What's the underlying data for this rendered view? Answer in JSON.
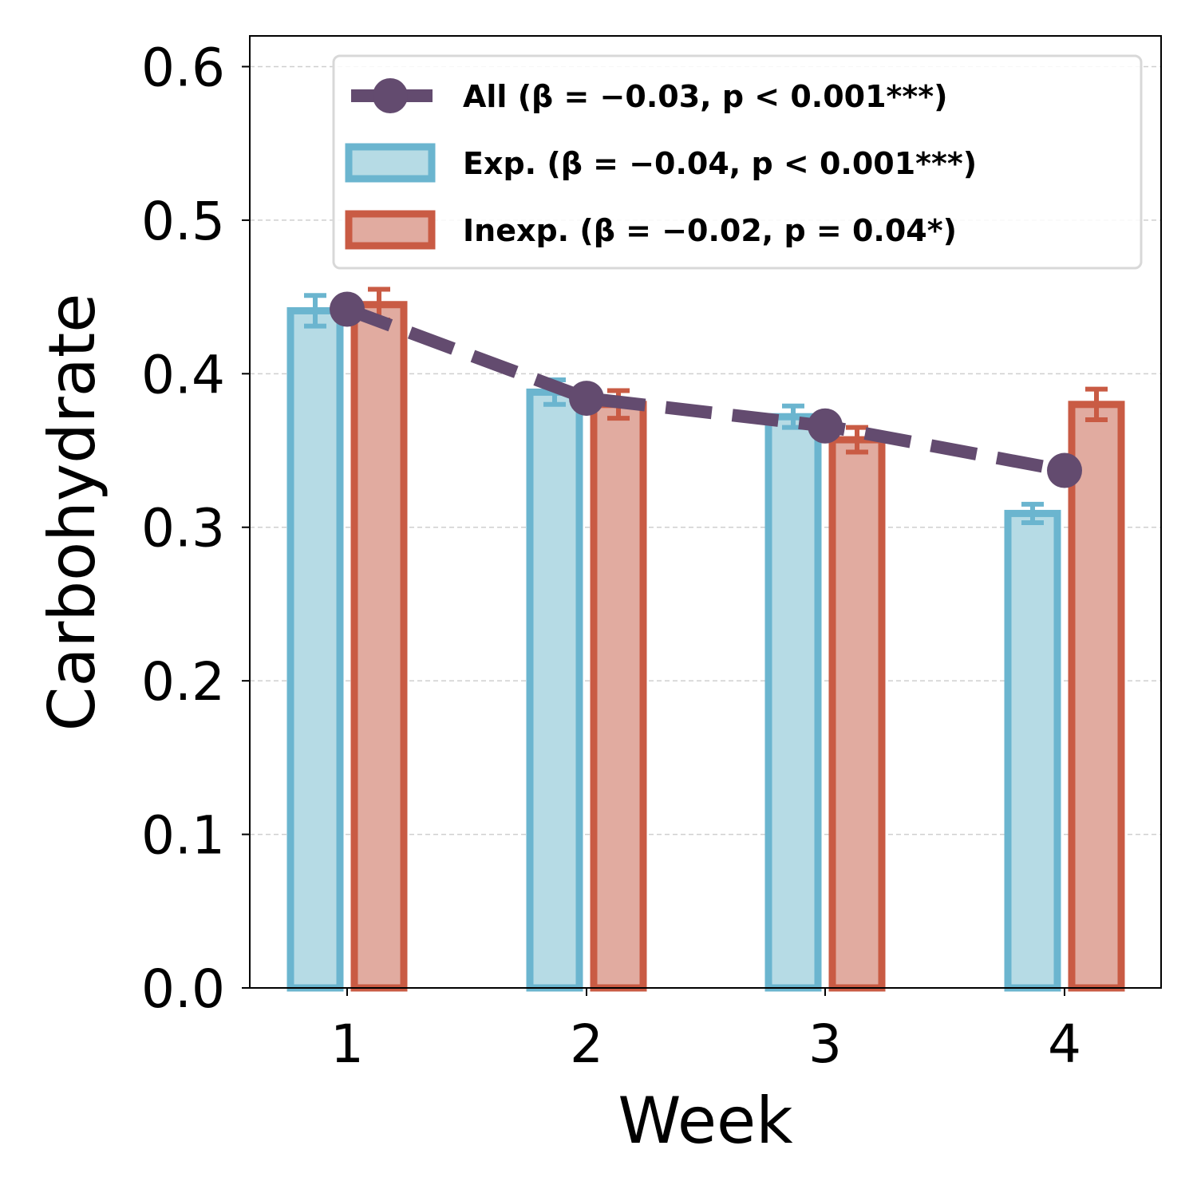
{
  "chart_data": {
    "type": "bar",
    "xlabel": "Week",
    "ylabel": "Carbohydrate",
    "categories": [
      "1",
      "2",
      "3",
      "4"
    ],
    "ylim": [
      0.0,
      0.62
    ],
    "yticks": [
      "0.0",
      "0.1",
      "0.2",
      "0.3",
      "0.4",
      "0.5",
      "0.6"
    ],
    "ytick_values": [
      0.0,
      0.1,
      0.2,
      0.3,
      0.4,
      0.5,
      0.6
    ],
    "grid": true,
    "legend_position": "top-right",
    "series": [
      {
        "name": "Exp.",
        "kind": "bar",
        "legend_label": "Exp. (β = −0.04, p < 0.001***)",
        "values": [
          0.441,
          0.388,
          0.372,
          0.309
        ],
        "errors": [
          0.01,
          0.008,
          0.007,
          0.006
        ],
        "fill_color": "#b6dbe5",
        "edge_color": "#6bb5cf"
      },
      {
        "name": "Inexp.",
        "kind": "bar",
        "legend_label": "Inexp. (β = −0.02, p = 0.04*)",
        "values": [
          0.445,
          0.38,
          0.357,
          0.38
        ],
        "errors": [
          0.01,
          0.009,
          0.008,
          0.01
        ],
        "fill_color": "#e1aba0",
        "edge_color": "#c95b44"
      },
      {
        "name": "All",
        "kind": "line",
        "legend_label": "All (β = −0.03, p < 0.001***)",
        "values": [
          0.442,
          0.384,
          0.366,
          0.337
        ],
        "color": "#634b6f",
        "style": "dashed"
      }
    ]
  }
}
